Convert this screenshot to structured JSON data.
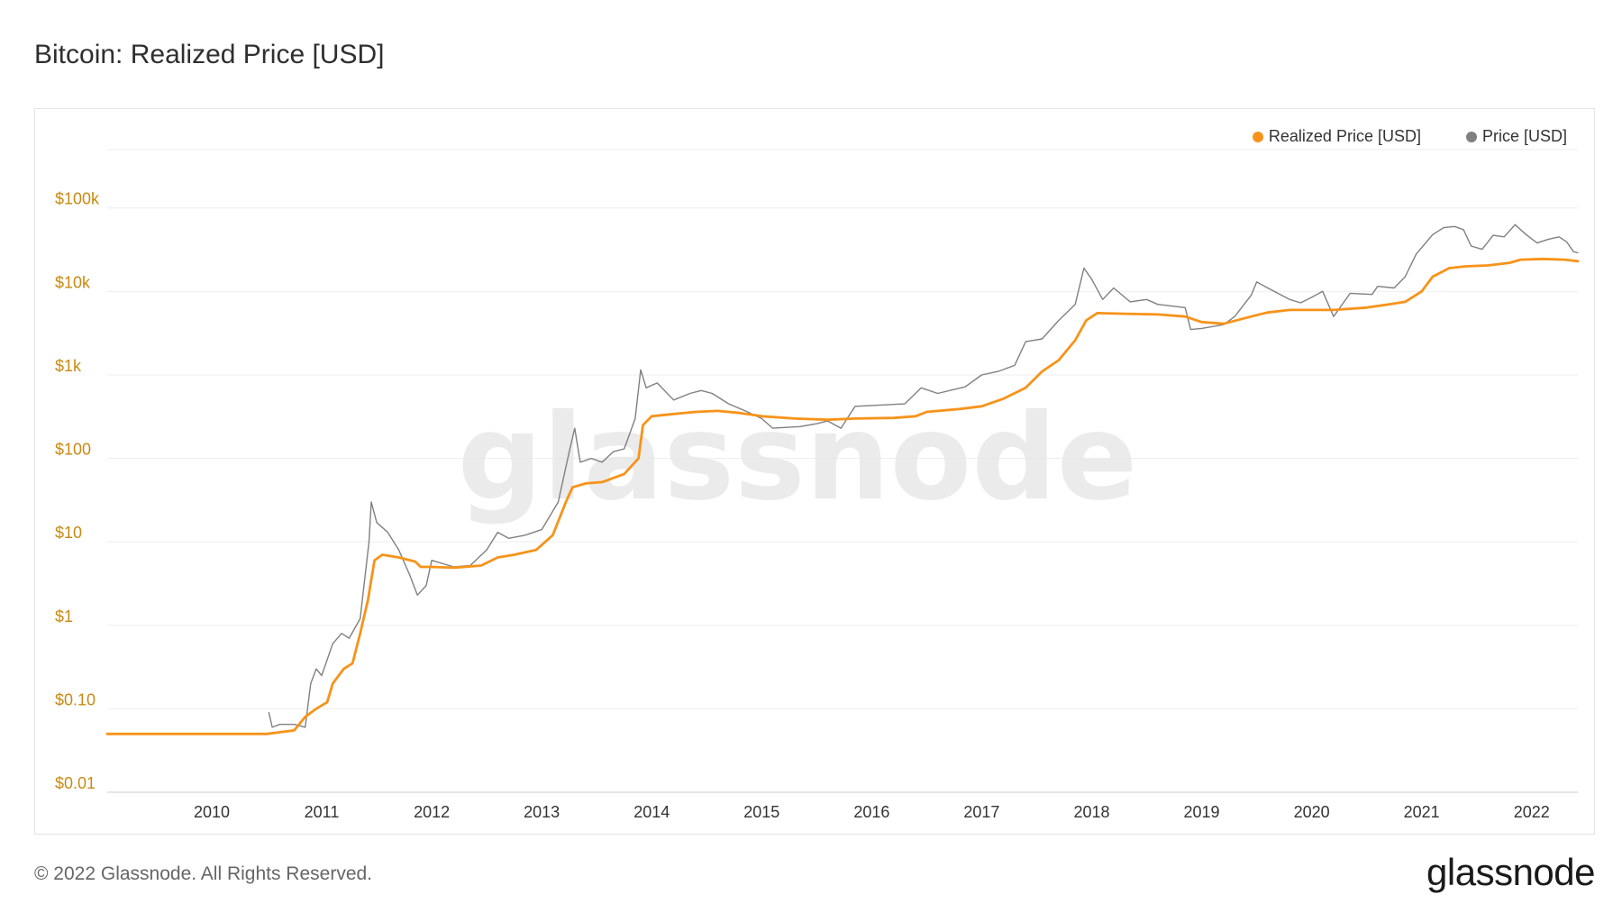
{
  "title": "Bitcoin: Realized Price [USD]",
  "footer": {
    "copyright": "© 2022 Glassnode. All Rights Reserved.",
    "logo_text": "glassnode"
  },
  "watermark": "glassnode",
  "colors": {
    "realized": "#f7931a",
    "price": "#808080",
    "axis_label": "#c98a12",
    "grid": "#eeeeee"
  },
  "chart_data": {
    "type": "line",
    "title": "Bitcoin: Realized Price [USD]",
    "xlabel": "",
    "ylabel": "",
    "yscale": "log",
    "ylim": [
      0.01,
      500000
    ],
    "xlim": [
      2009.05,
      2022.42
    ],
    "y_tick_values": [
      0.01,
      0.1,
      1,
      10,
      100,
      1000,
      10000,
      100000
    ],
    "y_tick_labels": [
      "$0.01",
      "$0.10",
      "$1",
      "$10",
      "$100",
      "$1k",
      "$10k",
      "$100k"
    ],
    "x_tick_labels": [
      "2010",
      "2011",
      "2012",
      "2013",
      "2014",
      "2015",
      "2016",
      "2017",
      "2018",
      "2019",
      "2020",
      "2021",
      "2022"
    ],
    "grid": true,
    "legend_position": "top-right",
    "legend": [
      {
        "label": "Realized Price [USD]",
        "color": "#f7931a"
      },
      {
        "label": "Price [USD]",
        "color": "#808080"
      }
    ],
    "series": [
      {
        "name": "Realized Price [USD]",
        "color": "#f7931a",
        "points": [
          [
            2009.05,
            0.05
          ],
          [
            2010.5,
            0.05
          ],
          [
            2010.75,
            0.055
          ],
          [
            2010.85,
            0.08
          ],
          [
            2010.95,
            0.1
          ],
          [
            2011.05,
            0.12
          ],
          [
            2011.1,
            0.2
          ],
          [
            2011.2,
            0.3
          ],
          [
            2011.28,
            0.35
          ],
          [
            2011.35,
            0.8
          ],
          [
            2011.42,
            2
          ],
          [
            2011.48,
            6
          ],
          [
            2011.55,
            7
          ],
          [
            2011.7,
            6.5
          ],
          [
            2011.85,
            5.8
          ],
          [
            2011.9,
            5
          ],
          [
            2012.0,
            5
          ],
          [
            2012.2,
            4.9
          ],
          [
            2012.45,
            5.2
          ],
          [
            2012.6,
            6.5
          ],
          [
            2012.75,
            7
          ],
          [
            2012.95,
            8
          ],
          [
            2013.1,
            12
          ],
          [
            2013.22,
            30
          ],
          [
            2013.28,
            45
          ],
          [
            2013.4,
            50
          ],
          [
            2013.55,
            52
          ],
          [
            2013.75,
            65
          ],
          [
            2013.88,
            100
          ],
          [
            2013.92,
            250
          ],
          [
            2014.0,
            320
          ],
          [
            2014.2,
            340
          ],
          [
            2014.4,
            360
          ],
          [
            2014.6,
            370
          ],
          [
            2014.8,
            350
          ],
          [
            2015.0,
            320
          ],
          [
            2015.3,
            300
          ],
          [
            2015.6,
            290
          ],
          [
            2015.85,
            300
          ],
          [
            2016.2,
            305
          ],
          [
            2016.4,
            320
          ],
          [
            2016.5,
            360
          ],
          [
            2016.8,
            390
          ],
          [
            2017.0,
            420
          ],
          [
            2017.2,
            520
          ],
          [
            2017.4,
            700
          ],
          [
            2017.55,
            1100
          ],
          [
            2017.7,
            1500
          ],
          [
            2017.85,
            2600
          ],
          [
            2017.95,
            4500
          ],
          [
            2018.05,
            5500
          ],
          [
            2018.3,
            5400
          ],
          [
            2018.6,
            5300
          ],
          [
            2018.85,
            5000
          ],
          [
            2019.0,
            4300
          ],
          [
            2019.2,
            4100
          ],
          [
            2019.45,
            5000
          ],
          [
            2019.6,
            5600
          ],
          [
            2019.8,
            6000
          ],
          [
            2020.0,
            6000
          ],
          [
            2020.2,
            6000
          ],
          [
            2020.5,
            6400
          ],
          [
            2020.7,
            7000
          ],
          [
            2020.85,
            7500
          ],
          [
            2021.0,
            10000
          ],
          [
            2021.1,
            15000
          ],
          [
            2021.25,
            19000
          ],
          [
            2021.4,
            20000
          ],
          [
            2021.6,
            20500
          ],
          [
            2021.8,
            22000
          ],
          [
            2021.9,
            24000
          ],
          [
            2022.1,
            24500
          ],
          [
            2022.3,
            24000
          ],
          [
            2022.42,
            23000
          ]
        ]
      },
      {
        "name": "Price [USD]",
        "color": "#808080",
        "points": [
          [
            2010.52,
            0.09
          ],
          [
            2010.55,
            0.06
          ],
          [
            2010.62,
            0.065
          ],
          [
            2010.75,
            0.065
          ],
          [
            2010.85,
            0.06
          ],
          [
            2010.9,
            0.2
          ],
          [
            2010.95,
            0.3
          ],
          [
            2011.0,
            0.25
          ],
          [
            2011.1,
            0.6
          ],
          [
            2011.18,
            0.8
          ],
          [
            2011.25,
            0.7
          ],
          [
            2011.35,
            1.2
          ],
          [
            2011.43,
            10
          ],
          [
            2011.45,
            30
          ],
          [
            2011.5,
            17
          ],
          [
            2011.6,
            13
          ],
          [
            2011.7,
            8
          ],
          [
            2011.8,
            4
          ],
          [
            2011.87,
            2.3
          ],
          [
            2011.95,
            3
          ],
          [
            2012.0,
            6
          ],
          [
            2012.2,
            5
          ],
          [
            2012.35,
            5.2
          ],
          [
            2012.5,
            8
          ],
          [
            2012.6,
            13
          ],
          [
            2012.7,
            11
          ],
          [
            2012.85,
            12
          ],
          [
            2013.0,
            14
          ],
          [
            2013.15,
            30
          ],
          [
            2013.25,
            120
          ],
          [
            2013.3,
            230
          ],
          [
            2013.35,
            90
          ],
          [
            2013.45,
            100
          ],
          [
            2013.55,
            90
          ],
          [
            2013.65,
            120
          ],
          [
            2013.75,
            130
          ],
          [
            2013.85,
            300
          ],
          [
            2013.9,
            1150
          ],
          [
            2013.95,
            700
          ],
          [
            2014.05,
            800
          ],
          [
            2014.2,
            500
          ],
          [
            2014.35,
            600
          ],
          [
            2014.45,
            650
          ],
          [
            2014.55,
            600
          ],
          [
            2014.7,
            450
          ],
          [
            2014.85,
            370
          ],
          [
            2015.0,
            300
          ],
          [
            2015.1,
            230
          ],
          [
            2015.35,
            240
          ],
          [
            2015.5,
            260
          ],
          [
            2015.6,
            280
          ],
          [
            2015.72,
            230
          ],
          [
            2015.85,
            420
          ],
          [
            2016.0,
            430
          ],
          [
            2016.3,
            450
          ],
          [
            2016.45,
            700
          ],
          [
            2016.6,
            600
          ],
          [
            2016.85,
            720
          ],
          [
            2017.0,
            1000
          ],
          [
            2017.15,
            1100
          ],
          [
            2017.3,
            1300
          ],
          [
            2017.4,
            2500
          ],
          [
            2017.55,
            2700
          ],
          [
            2017.7,
            4500
          ],
          [
            2017.85,
            7000
          ],
          [
            2017.93,
            19000
          ],
          [
            2018.0,
            14000
          ],
          [
            2018.1,
            8000
          ],
          [
            2018.2,
            11000
          ],
          [
            2018.35,
            7500
          ],
          [
            2018.5,
            8000
          ],
          [
            2018.6,
            7000
          ],
          [
            2018.85,
            6400
          ],
          [
            2018.9,
            3500
          ],
          [
            2019.0,
            3600
          ],
          [
            2019.2,
            4000
          ],
          [
            2019.3,
            5000
          ],
          [
            2019.45,
            9000
          ],
          [
            2019.5,
            13000
          ],
          [
            2019.6,
            11000
          ],
          [
            2019.8,
            8000
          ],
          [
            2019.9,
            7300
          ],
          [
            2020.0,
            8500
          ],
          [
            2020.1,
            10000
          ],
          [
            2020.2,
            5000
          ],
          [
            2020.35,
            9500
          ],
          [
            2020.55,
            9200
          ],
          [
            2020.6,
            11500
          ],
          [
            2020.75,
            11000
          ],
          [
            2020.85,
            15000
          ],
          [
            2020.95,
            28000
          ],
          [
            2021.1,
            48000
          ],
          [
            2021.2,
            58000
          ],
          [
            2021.3,
            60000
          ],
          [
            2021.38,
            55000
          ],
          [
            2021.45,
            35000
          ],
          [
            2021.55,
            32000
          ],
          [
            2021.65,
            47000
          ],
          [
            2021.75,
            45000
          ],
          [
            2021.85,
            63000
          ],
          [
            2021.95,
            48000
          ],
          [
            2022.05,
            38000
          ],
          [
            2022.15,
            42000
          ],
          [
            2022.25,
            45000
          ],
          [
            2022.32,
            39000
          ],
          [
            2022.38,
            30000
          ],
          [
            2022.42,
            29000
          ]
        ]
      }
    ]
  }
}
